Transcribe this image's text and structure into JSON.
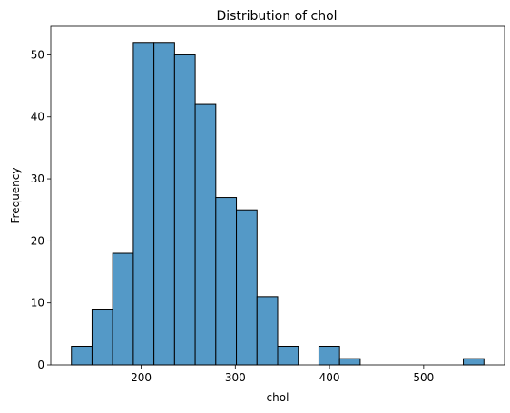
{
  "chart_data": {
    "type": "bar",
    "title": "Distribution of chol",
    "xlabel": "chol",
    "ylabel": "Frequency",
    "bin_edges": [
      126,
      147.9,
      169.8,
      191.7,
      213.6,
      235.5,
      257.4,
      279.3,
      301.2,
      323.1,
      345,
      366.9,
      388.8,
      410.7,
      432.6,
      454.5,
      476.4,
      498.3,
      520.2,
      542.1,
      564
    ],
    "values": [
      3,
      9,
      18,
      52,
      52,
      50,
      42,
      27,
      25,
      11,
      3,
      0,
      3,
      1,
      0,
      0,
      0,
      0,
      0,
      1
    ],
    "xlim": [
      104.1,
      585.9
    ],
    "ylim": [
      0,
      54.6
    ],
    "xticks": [
      200,
      300,
      400,
      500
    ],
    "xtick_labels": [
      "200",
      "300",
      "400",
      "500"
    ],
    "yticks": [
      0,
      10,
      20,
      30,
      40,
      50
    ],
    "ytick_labels": [
      "0",
      "10",
      "20",
      "30",
      "40",
      "50"
    ],
    "bar_color": "#5499c7",
    "edge_color": "#000000",
    "grid": false
  }
}
